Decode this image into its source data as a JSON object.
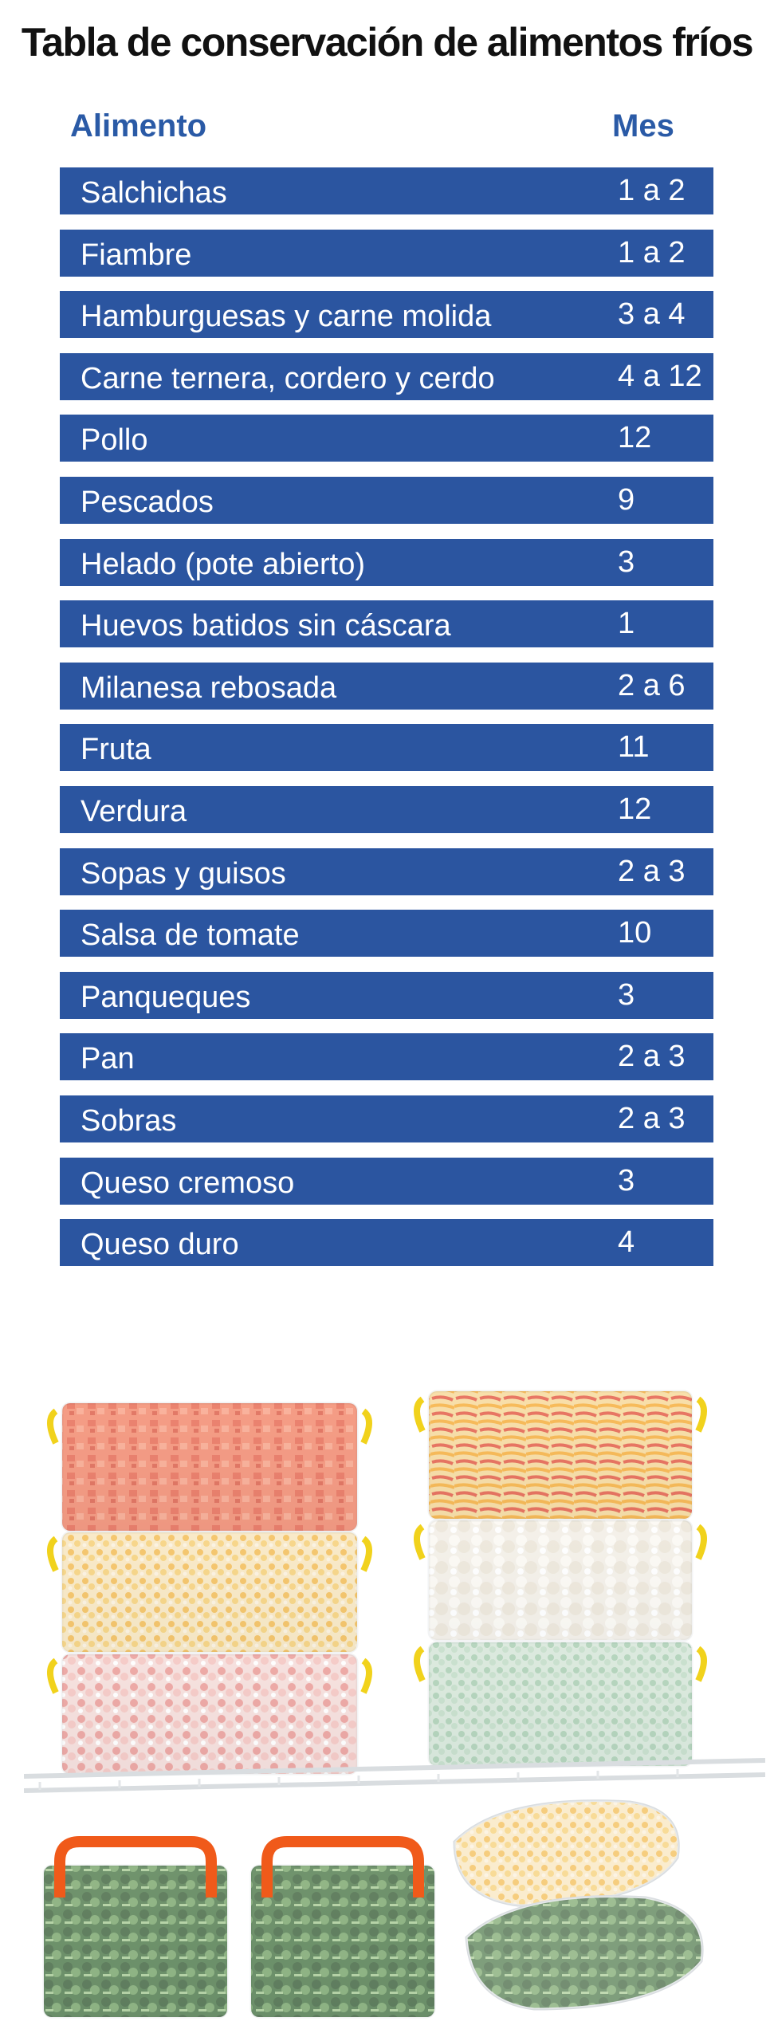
{
  "title": "Tabla de conservación de alimentos fríos",
  "headers": {
    "food": "Alimento",
    "months": "Mes"
  },
  "rows": [
    {
      "food": "Salchichas",
      "months": "1 a 2"
    },
    {
      "food": "Fiambre",
      "months": "1 a 2"
    },
    {
      "food": "Hamburguesas y carne molida",
      "months": "3 a 4"
    },
    {
      "food": "Carne ternera, cordero y cerdo",
      "months": "4 a 12"
    },
    {
      "food": "Pollo",
      "months": "12"
    },
    {
      "food": "Pescados",
      "months": "9"
    },
    {
      "food": "Helado (pote abierto)",
      "months": "3"
    },
    {
      "food": "Huevos batidos sin cáscara",
      "months": "1"
    },
    {
      "food": "Milanesa rebosada",
      "months": "2 a 6"
    },
    {
      "food": "Fruta",
      "months": "11"
    },
    {
      "food": "Verdura",
      "months": "12"
    },
    {
      "food": "Sopas y guisos",
      "months": "2 a 3"
    },
    {
      "food": "Salsa de tomate",
      "months": "10"
    },
    {
      "food": "Panqueques",
      "months": "3"
    },
    {
      "food": "Pan",
      "months": "2 a 3"
    },
    {
      "food": "Sobras",
      "months": "2 a 3"
    },
    {
      "food": "Queso cremoso",
      "months": "3"
    },
    {
      "food": "Queso duro",
      "months": "4"
    }
  ],
  "colors": {
    "row_background": "#2b55a0",
    "header_text": "#2a5aa6",
    "title_text": "#111111"
  }
}
